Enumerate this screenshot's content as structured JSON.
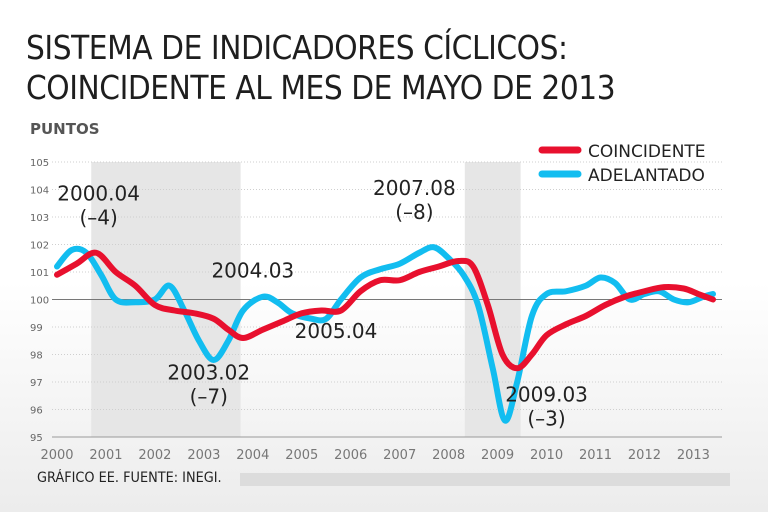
{
  "chart_data": {
    "type": "line",
    "title": "SISTEMA DE INDICADORES CÍCLICOS: COINCIDENTE AL MES DE MAYO DE 2013",
    "title_lines": [
      "SISTEMA DE INDICADORES CÍCLICOS:",
      "COINCIDENTE AL MES DE MAYO DE 2013"
    ],
    "ylabel": "PUNTOS",
    "xlim": [
      2000,
      2013.4
    ],
    "ylim": [
      95,
      105
    ],
    "yticks": [
      "95",
      "96",
      "97",
      "98",
      "99",
      "100",
      "101",
      "102",
      "103",
      "104",
      "105"
    ],
    "xticks": [
      "2000",
      "2001",
      "2002",
      "2003",
      "2004",
      "2005",
      "2006",
      "2007",
      "2008",
      "2009",
      "2010",
      "2011",
      "2012",
      "2013"
    ],
    "grid": true,
    "reference_line": 100,
    "legend_placement": "top-right",
    "shaded_periods": [
      [
        2000.7,
        2003.75
      ],
      [
        2008.33,
        2009.47
      ]
    ],
    "series": [
      {
        "name": "COINCIDENTE",
        "color": "#e8102e",
        "x": [
          2000,
          2000.4,
          2000.8,
          2001.2,
          2001.6,
          2002,
          2002.4,
          2002.8,
          2003.2,
          2003.5,
          2003.8,
          2004.2,
          2004.6,
          2005,
          2005.4,
          2005.8,
          2006.2,
          2006.6,
          2007,
          2007.4,
          2007.8,
          2008.2,
          2008.5,
          2008.8,
          2009.1,
          2009.4,
          2009.7,
          2010,
          2010.4,
          2010.8,
          2011.2,
          2011.6,
          2012,
          2012.4,
          2012.8,
          2013.1,
          2013.4
        ],
        "y": [
          100.9,
          101.3,
          101.7,
          101.0,
          100.5,
          99.8,
          99.6,
          99.5,
          99.3,
          98.9,
          98.6,
          98.9,
          99.2,
          99.5,
          99.6,
          99.6,
          100.3,
          100.7,
          100.7,
          101.0,
          101.2,
          101.4,
          101.2,
          99.8,
          98.0,
          97.5,
          98.0,
          98.7,
          99.1,
          99.4,
          99.8,
          100.1,
          100.3,
          100.45,
          100.4,
          100.2,
          100.0
        ]
      },
      {
        "name": "ADELANTADO",
        "color": "#12bdf0",
        "x": [
          2000,
          2000.3,
          2000.6,
          2000.9,
          2001.2,
          2001.6,
          2002,
          2002.3,
          2002.6,
          2002.9,
          2003.2,
          2003.5,
          2003.8,
          2004.2,
          2004.5,
          2004.8,
          2005.2,
          2005.5,
          2005.8,
          2006.2,
          2006.6,
          2007,
          2007.4,
          2007.7,
          2008,
          2008.3,
          2008.6,
          2008.9,
          2009.15,
          2009.4,
          2009.7,
          2010,
          2010.4,
          2010.8,
          2011.1,
          2011.4,
          2011.7,
          2012,
          2012.3,
          2012.6,
          2012.9,
          2013.2,
          2013.4
        ],
        "y": [
          101.2,
          101.8,
          101.7,
          100.9,
          100.0,
          99.9,
          100.0,
          100.5,
          99.6,
          98.5,
          97.8,
          98.5,
          99.6,
          100.1,
          99.9,
          99.5,
          99.3,
          99.3,
          100.0,
          100.8,
          101.1,
          101.3,
          101.7,
          101.9,
          101.5,
          100.9,
          99.8,
          97.5,
          95.6,
          97.0,
          99.4,
          100.2,
          100.3,
          100.5,
          100.8,
          100.6,
          100.0,
          100.2,
          100.3,
          100.0,
          99.9,
          100.1,
          100.2
        ]
      }
    ],
    "annotations": [
      {
        "text": "2000.04",
        "sub": "(–4)",
        "x": 2000.85,
        "y": 103.6
      },
      {
        "text": "2003.02",
        "sub": "(–7)",
        "x": 2003.1,
        "y": 97.1
      },
      {
        "text": "2004.03",
        "sub": "",
        "x": 2004.0,
        "y": 100.8
      },
      {
        "text": "2005.04",
        "sub": "",
        "x": 2005.7,
        "y": 98.6
      },
      {
        "text": "2007.08",
        "sub": "(–8)",
        "x": 2007.3,
        "y": 103.8
      },
      {
        "text": "2009.03",
        "sub": "(–3)",
        "x": 2010.0,
        "y": 96.3
      }
    ]
  },
  "footer": "GRÁFICO EE. FUENTE: INEGI."
}
